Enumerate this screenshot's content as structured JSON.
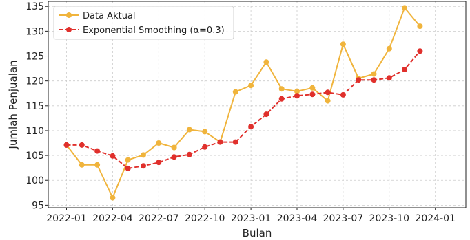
{
  "chart_data": {
    "type": "line",
    "xlabel": "Bulan",
    "ylabel": "Jumlah Penjualan",
    "x": [
      "2022-01",
      "2022-02",
      "2022-03",
      "2022-04",
      "2022-05",
      "2022-06",
      "2022-07",
      "2022-08",
      "2022-09",
      "2022-10",
      "2022-11",
      "2022-12",
      "2023-01",
      "2023-02",
      "2023-03",
      "2023-04",
      "2023-05",
      "2023-06",
      "2023-07",
      "2023-08",
      "2023-09",
      "2023-10",
      "2023-11",
      "2023-12",
      "2024-01"
    ],
    "x_ticks": [
      "2022-01",
      "2022-04",
      "2022-07",
      "2022-10",
      "2023-01",
      "2023-04",
      "2023-07",
      "2023-10",
      "2024-01"
    ],
    "ylim": [
      94.5,
      136
    ],
    "y_ticks": [
      95,
      100,
      105,
      110,
      115,
      120,
      125,
      130,
      135
    ],
    "grid": true,
    "legend_position": "top-left",
    "series": [
      {
        "name": "Data Aktual",
        "color": "#f0b43c",
        "style": "solid",
        "values": [
          107.1,
          103.1,
          103.1,
          96.5,
          104.1,
          105.1,
          107.5,
          106.6,
          110.2,
          109.8,
          107.7,
          117.8,
          119.1,
          123.8,
          118.4,
          117.9,
          118.6,
          116.0,
          127.4,
          120.5,
          121.4,
          126.5,
          134.7,
          131.0,
          null
        ]
      },
      {
        "name": "Exponential Smoothing (α=0.3)",
        "color": "#e0302c",
        "style": "dashed",
        "values": [
          107.1,
          107.1,
          105.9,
          104.9,
          102.4,
          102.9,
          103.6,
          104.7,
          105.2,
          106.7,
          107.7,
          107.7,
          110.8,
          113.3,
          116.4,
          117.0,
          117.3,
          117.7,
          117.2,
          120.2,
          120.2,
          120.6,
          122.3,
          126.0,
          null
        ]
      }
    ]
  }
}
